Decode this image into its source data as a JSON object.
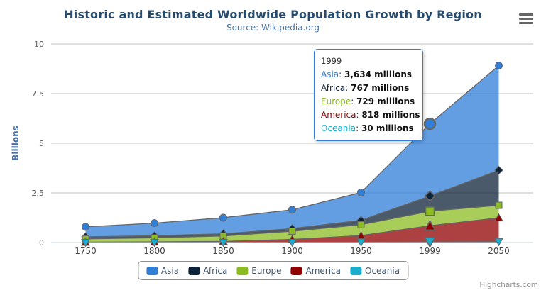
{
  "chart": {
    "title": "Historic and Estimated Worldwide Population Growth by Region",
    "subtitle": "Source: Wikipedia.org",
    "credits": "Highcharts.com"
  },
  "y_axis": {
    "title": "Billions",
    "tick_labels": [
      "0",
      "2.5",
      "5",
      "7.5",
      "10"
    ],
    "tick_values": [
      0,
      2.5,
      5,
      7.5,
      10
    ]
  },
  "x_axis": {
    "categories": [
      "1750",
      "1800",
      "1850",
      "1900",
      "1950",
      "1999",
      "2050"
    ]
  },
  "chart_data": {
    "type": "area",
    "stacking": "normal",
    "title": "Historic and Estimated Worldwide Population Growth by Region",
    "subtitle": "Source: Wikipedia.org",
    "categories": [
      "1750",
      "1800",
      "1850",
      "1900",
      "1950",
      "1999",
      "2050"
    ],
    "unit": "millions",
    "ylabel": "Billions",
    "ylim": [
      0,
      10
    ],
    "grid": true,
    "legend_position": "bottom",
    "line_color": "#666666",
    "fill_opacity": 0.75,
    "grid_color": "#C0C0C0",
    "axis_line_color": "#C0D0E0",
    "hover_category": "1999",
    "hover_index": 5,
    "series": [
      {
        "name": "Asia",
        "color": "#2f7ed8",
        "marker": "circle",
        "values": [
          502,
          635,
          809,
          947,
          1402,
          3634,
          5268
        ]
      },
      {
        "name": "Africa",
        "color": "#0d233a",
        "marker": "diamond",
        "values": [
          106,
          107,
          111,
          133,
          221,
          767,
          1766
        ]
      },
      {
        "name": "Europe",
        "color": "#8bbc21",
        "marker": "square",
        "values": [
          163,
          203,
          276,
          408,
          547,
          729,
          628
        ]
      },
      {
        "name": "America",
        "color": "#910000",
        "marker": "triangle",
        "values": [
          18,
          31,
          54,
          156,
          339,
          818,
          1201
        ]
      },
      {
        "name": "Oceania",
        "color": "#1aadce",
        "marker": "triangle-down",
        "values": [
          2,
          2,
          2,
          6,
          13,
          30,
          46
        ]
      }
    ]
  },
  "tooltip": {
    "header": "1999",
    "border_color": "#2f7ed8",
    "rows": [
      {
        "label": "Asia",
        "value": "3,634 millions",
        "color": "#2f7ed8"
      },
      {
        "label": "Africa",
        "value": "767 millions",
        "color": "#0d233a"
      },
      {
        "label": "Europe",
        "value": "729 millions",
        "color": "#8bbc21"
      },
      {
        "label": "America",
        "value": "818 millions",
        "color": "#910000"
      },
      {
        "label": "Oceania",
        "value": "30 millions",
        "color": "#1aadce"
      }
    ]
  },
  "legend": {
    "items": [
      {
        "label": "Asia",
        "color": "#2f7ed8"
      },
      {
        "label": "Africa",
        "color": "#0d233a"
      },
      {
        "label": "Europe",
        "color": "#8bbc21"
      },
      {
        "label": "America",
        "color": "#910000"
      },
      {
        "label": "Oceania",
        "color": "#1aadce"
      }
    ]
  },
  "icons": {
    "menu": "hamburger-icon"
  }
}
